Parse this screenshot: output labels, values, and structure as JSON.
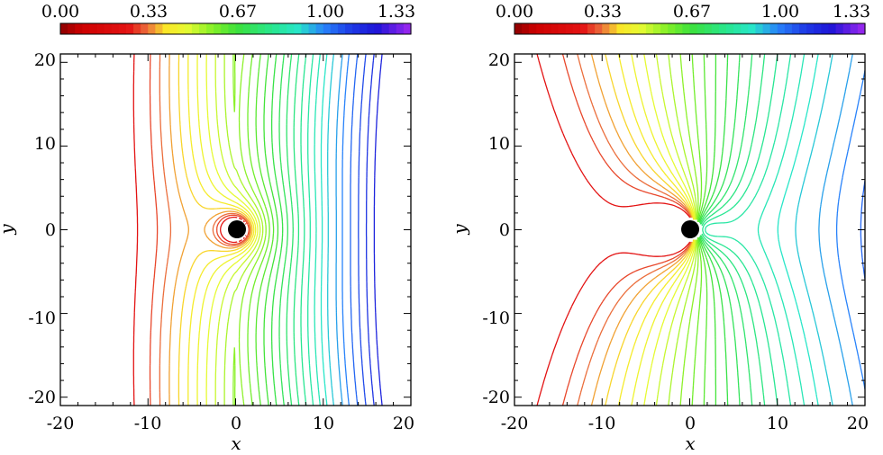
{
  "chart_data": [
    {
      "type": "contour",
      "panel": "left",
      "xlabel": "x",
      "ylabel": "y",
      "xlim": [
        -20,
        20
      ],
      "ylim": [
        -21,
        21
      ],
      "xticks": [
        "-20",
        "-10",
        "0",
        "10",
        "20"
      ],
      "yticks": [
        "20",
        "10",
        "0",
        "-10",
        "-20"
      ],
      "colorbar": {
        "range": [
          0.0,
          1.33
        ],
        "tick_labels": [
          "0.00",
          "0.33",
          "0.67",
          "1.00",
          "1.33"
        ],
        "colormap": "rainbow (dark red → red → orange → yellow → green → cyan → blue → violet)"
      },
      "central_body": {
        "x": 0,
        "y": 0,
        "color": "#000000"
      },
      "contour_levels": [
        0.25,
        0.3,
        0.33,
        0.36,
        0.39,
        0.42,
        0.45,
        0.48,
        0.51,
        0.54,
        0.57,
        0.6,
        0.63,
        0.66,
        0.69,
        0.72,
        0.75,
        0.78,
        0.81,
        0.84,
        0.87,
        0.9,
        0.93,
        0.97,
        1.0,
        1.04,
        1.08,
        1.12,
        1.16
      ]
    },
    {
      "type": "contour",
      "panel": "right",
      "xlabel": "x",
      "ylabel": "y",
      "xlim": [
        -20,
        20
      ],
      "ylim": [
        -21,
        21
      ],
      "xticks": [
        "-20",
        "-10",
        "0",
        "10",
        "20"
      ],
      "yticks": [
        "20",
        "10",
        "0",
        "-10",
        "-20"
      ],
      "colorbar": {
        "range": [
          0.0,
          1.33
        ],
        "tick_labels": [
          "0.00",
          "0.33",
          "0.67",
          "1.00",
          "1.33"
        ],
        "colormap": "rainbow (dark red → red → orange → yellow → green → cyan → blue → violet)"
      },
      "central_body": {
        "x": 0,
        "y": 0,
        "color": "#000000"
      },
      "contour_levels": [
        0.25,
        0.3,
        0.33,
        0.36,
        0.39,
        0.42,
        0.45,
        0.48,
        0.51,
        0.54,
        0.57,
        0.6,
        0.63,
        0.66,
        0.69,
        0.72,
        0.75,
        0.78,
        0.81,
        0.84,
        0.87,
        0.9,
        0.93,
        0.97,
        1.0,
        1.04,
        1.08,
        1.12,
        1.16,
        1.2,
        1.24,
        1.28
      ]
    }
  ]
}
